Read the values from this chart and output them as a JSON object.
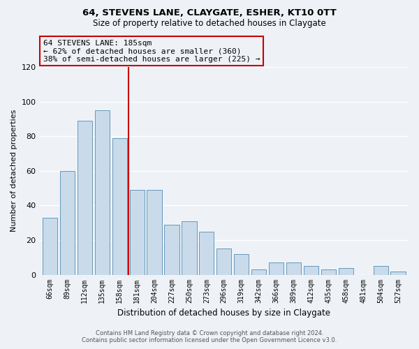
{
  "title": "64, STEVENS LANE, CLAYGATE, ESHER, KT10 0TT",
  "subtitle": "Size of property relative to detached houses in Claygate",
  "xlabel": "Distribution of detached houses by size in Claygate",
  "ylabel": "Number of detached properties",
  "categories": [
    "66sqm",
    "89sqm",
    "112sqm",
    "135sqm",
    "158sqm",
    "181sqm",
    "204sqm",
    "227sqm",
    "250sqm",
    "273sqm",
    "296sqm",
    "319sqm",
    "342sqm",
    "366sqm",
    "389sqm",
    "412sqm",
    "435sqm",
    "458sqm",
    "481sqm",
    "504sqm",
    "527sqm"
  ],
  "values": [
    33,
    60,
    89,
    95,
    79,
    49,
    49,
    29,
    31,
    25,
    15,
    12,
    3,
    7,
    7,
    5,
    3,
    4,
    0,
    5,
    2
  ],
  "bar_color": "#c9daea",
  "bar_edgecolor": "#6699bb",
  "vline_color": "#cc0000",
  "vline_position": 4.5,
  "annotation_title": "64 STEVENS LANE: 185sqm",
  "annotation_line1": "← 62% of detached houses are smaller (360)",
  "annotation_line2": "38% of semi-detached houses are larger (225) →",
  "annotation_box_edgecolor": "#cc0000",
  "ylim": [
    0,
    120
  ],
  "yticks": [
    0,
    20,
    40,
    60,
    80,
    100,
    120
  ],
  "footer_line1": "Contains HM Land Registry data © Crown copyright and database right 2024.",
  "footer_line2": "Contains public sector information licensed under the Open Government Licence v3.0.",
  "background_color": "#eef2f7",
  "grid_color": "#ffffff"
}
